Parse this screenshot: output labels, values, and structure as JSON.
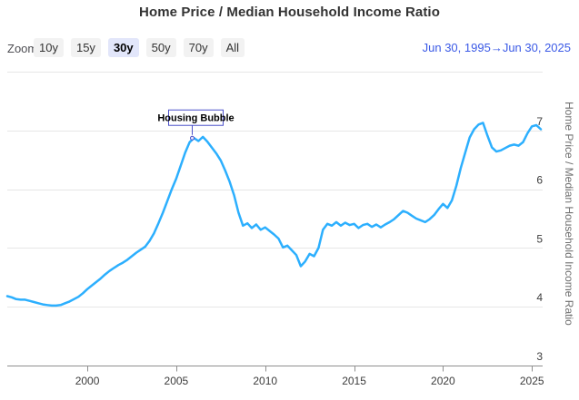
{
  "header": {
    "title": "Home Price / Median Household Income Ratio"
  },
  "range_selector": {
    "zoom_label": "Zoom",
    "buttons": [
      {
        "label": "10y",
        "selected": false
      },
      {
        "label": "15y",
        "selected": false
      },
      {
        "label": "30y",
        "selected": true
      },
      {
        "label": "50y",
        "selected": false
      },
      {
        "label": "70y",
        "selected": false
      },
      {
        "label": "All",
        "selected": false
      }
    ],
    "date_from": "Jun 30, 1995",
    "date_separator": "→",
    "date_to": "Jun 30, 2025"
  },
  "chart_data": {
    "type": "line",
    "title": "Home Price / Median Household Income Ratio",
    "xlabel": "",
    "ylabel": "Home Price / Median Household Income Ratio",
    "xlim": [
      1995.5,
      2025.5
    ],
    "ylim": [
      3,
      8
    ],
    "x_ticks": [
      2000,
      2005,
      2010,
      2015,
      2020,
      2025
    ],
    "x_tick_labels": [
      "2000",
      "2005",
      "2010",
      "2015",
      "2020",
      "2025"
    ],
    "y_ticks": [
      3,
      4,
      5,
      6,
      7
    ],
    "y_tick_labels": [
      "3",
      "4",
      "5",
      "6",
      "7"
    ],
    "y_grid_values": [
      4,
      5,
      6,
      7,
      8
    ],
    "grid": true,
    "legend": false,
    "line_color": "#2caffe",
    "grid_color": "#e6e6e6",
    "axis_color": "#8f8f8f",
    "tick_label_color": "#3c3c3c",
    "annotation": {
      "label": "Housing Bubble",
      "x": 2005.9,
      "y": 6.87,
      "color": "#4b4fc9"
    },
    "series": [
      {
        "name": "Home Price / Median Household Income Ratio",
        "points": [
          [
            1995.5,
            4.18
          ],
          [
            1995.75,
            4.16
          ],
          [
            1996.0,
            4.13
          ],
          [
            1996.25,
            4.12
          ],
          [
            1996.5,
            4.12
          ],
          [
            1996.75,
            4.1
          ],
          [
            1997.0,
            4.08
          ],
          [
            1997.25,
            4.06
          ],
          [
            1997.5,
            4.04
          ],
          [
            1997.75,
            4.03
          ],
          [
            1998.0,
            4.02
          ],
          [
            1998.25,
            4.02
          ],
          [
            1998.5,
            4.03
          ],
          [
            1998.75,
            4.06
          ],
          [
            1999.0,
            4.09
          ],
          [
            1999.25,
            4.13
          ],
          [
            1999.5,
            4.17
          ],
          [
            1999.75,
            4.23
          ],
          [
            2000.0,
            4.3
          ],
          [
            2000.25,
            4.36
          ],
          [
            2000.5,
            4.42
          ],
          [
            2000.75,
            4.48
          ],
          [
            2001.0,
            4.55
          ],
          [
            2001.25,
            4.61
          ],
          [
            2001.5,
            4.66
          ],
          [
            2001.75,
            4.71
          ],
          [
            2002.0,
            4.75
          ],
          [
            2002.25,
            4.8
          ],
          [
            2002.5,
            4.86
          ],
          [
            2002.75,
            4.92
          ],
          [
            2003.0,
            4.97
          ],
          [
            2003.25,
            5.02
          ],
          [
            2003.5,
            5.12
          ],
          [
            2003.75,
            5.25
          ],
          [
            2004.0,
            5.42
          ],
          [
            2004.25,
            5.6
          ],
          [
            2004.5,
            5.8
          ],
          [
            2004.75,
            6.0
          ],
          [
            2005.0,
            6.18
          ],
          [
            2005.25,
            6.4
          ],
          [
            2005.5,
            6.62
          ],
          [
            2005.75,
            6.8
          ],
          [
            2006.0,
            6.87
          ],
          [
            2006.25,
            6.82
          ],
          [
            2006.5,
            6.89
          ],
          [
            2006.75,
            6.81
          ],
          [
            2007.0,
            6.71
          ],
          [
            2007.25,
            6.61
          ],
          [
            2007.5,
            6.49
          ],
          [
            2007.75,
            6.32
          ],
          [
            2008.0,
            6.13
          ],
          [
            2008.25,
            5.9
          ],
          [
            2008.5,
            5.6
          ],
          [
            2008.75,
            5.38
          ],
          [
            2009.0,
            5.42
          ],
          [
            2009.25,
            5.34
          ],
          [
            2009.5,
            5.4
          ],
          [
            2009.75,
            5.31
          ],
          [
            2010.0,
            5.35
          ],
          [
            2010.25,
            5.29
          ],
          [
            2010.5,
            5.23
          ],
          [
            2010.75,
            5.16
          ],
          [
            2011.0,
            5.01
          ],
          [
            2011.25,
            5.04
          ],
          [
            2011.5,
            4.96
          ],
          [
            2011.75,
            4.88
          ],
          [
            2012.0,
            4.69
          ],
          [
            2012.25,
            4.77
          ],
          [
            2012.5,
            4.9
          ],
          [
            2012.75,
            4.86
          ],
          [
            2013.0,
            5.0
          ],
          [
            2013.25,
            5.31
          ],
          [
            2013.5,
            5.41
          ],
          [
            2013.75,
            5.38
          ],
          [
            2014.0,
            5.44
          ],
          [
            2014.25,
            5.38
          ],
          [
            2014.5,
            5.43
          ],
          [
            2014.75,
            5.39
          ],
          [
            2015.0,
            5.41
          ],
          [
            2015.25,
            5.34
          ],
          [
            2015.5,
            5.39
          ],
          [
            2015.75,
            5.41
          ],
          [
            2016.0,
            5.36
          ],
          [
            2016.25,
            5.4
          ],
          [
            2016.5,
            5.35
          ],
          [
            2016.75,
            5.4
          ],
          [
            2017.0,
            5.44
          ],
          [
            2017.25,
            5.49
          ],
          [
            2017.5,
            5.56
          ],
          [
            2017.75,
            5.63
          ],
          [
            2018.0,
            5.6
          ],
          [
            2018.25,
            5.55
          ],
          [
            2018.5,
            5.5
          ],
          [
            2018.75,
            5.47
          ],
          [
            2019.0,
            5.44
          ],
          [
            2019.25,
            5.49
          ],
          [
            2019.5,
            5.56
          ],
          [
            2019.75,
            5.66
          ],
          [
            2020.0,
            5.75
          ],
          [
            2020.25,
            5.68
          ],
          [
            2020.5,
            5.81
          ],
          [
            2020.75,
            6.06
          ],
          [
            2021.0,
            6.36
          ],
          [
            2021.25,
            6.62
          ],
          [
            2021.5,
            6.88
          ],
          [
            2021.75,
            7.02
          ],
          [
            2022.0,
            7.1
          ],
          [
            2022.25,
            7.13
          ],
          [
            2022.5,
            6.91
          ],
          [
            2022.75,
            6.71
          ],
          [
            2023.0,
            6.64
          ],
          [
            2023.25,
            6.66
          ],
          [
            2023.5,
            6.7
          ],
          [
            2023.75,
            6.74
          ],
          [
            2024.0,
            6.76
          ],
          [
            2024.25,
            6.74
          ],
          [
            2024.5,
            6.8
          ],
          [
            2024.75,
            6.95
          ],
          [
            2025.0,
            7.07
          ],
          [
            2025.25,
            7.09
          ],
          [
            2025.5,
            7.02
          ]
        ]
      }
    ]
  }
}
